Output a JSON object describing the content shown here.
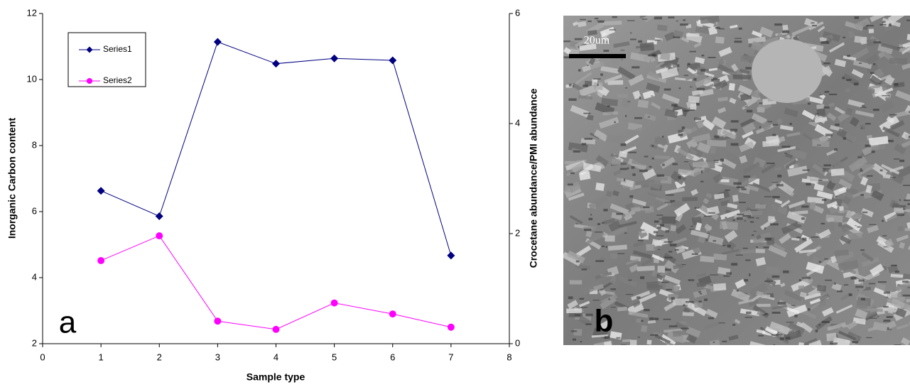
{
  "chart_data": {
    "type": "line",
    "x_label": "Sample type",
    "y_label": "Inorganic Carbon content",
    "y2_label": "Crocetane abundance/PMI abundance",
    "annotation": "a",
    "x": [
      1,
      2,
      3,
      4,
      5,
      6,
      7
    ],
    "series": [
      {
        "name": "Series1",
        "color": "#000080",
        "marker": "diamond",
        "values": [
          6.63,
          5.86,
          11.14,
          10.48,
          10.64,
          10.58,
          4.67
        ]
      },
      {
        "name": "Series2",
        "color": "#ff00ff",
        "marker": "circle",
        "axis": "y2",
        "values": [
          1.51,
          1.96,
          0.41,
          0.26,
          0.74,
          0.54,
          0.3
        ]
      }
    ],
    "xlim": [
      0,
      8
    ],
    "xticks": [
      0,
      1,
      2,
      3,
      4,
      5,
      6,
      7,
      8
    ],
    "ylim": [
      2,
      12
    ],
    "yticks": [
      2,
      4,
      6,
      8,
      10,
      12
    ],
    "y2lim": [
      0,
      6
    ],
    "y2ticks": [
      0,
      2,
      4,
      6
    ],
    "grid": false,
    "legend_position": "upper left"
  },
  "image": {
    "scale_bar": "20um",
    "label": "b"
  }
}
